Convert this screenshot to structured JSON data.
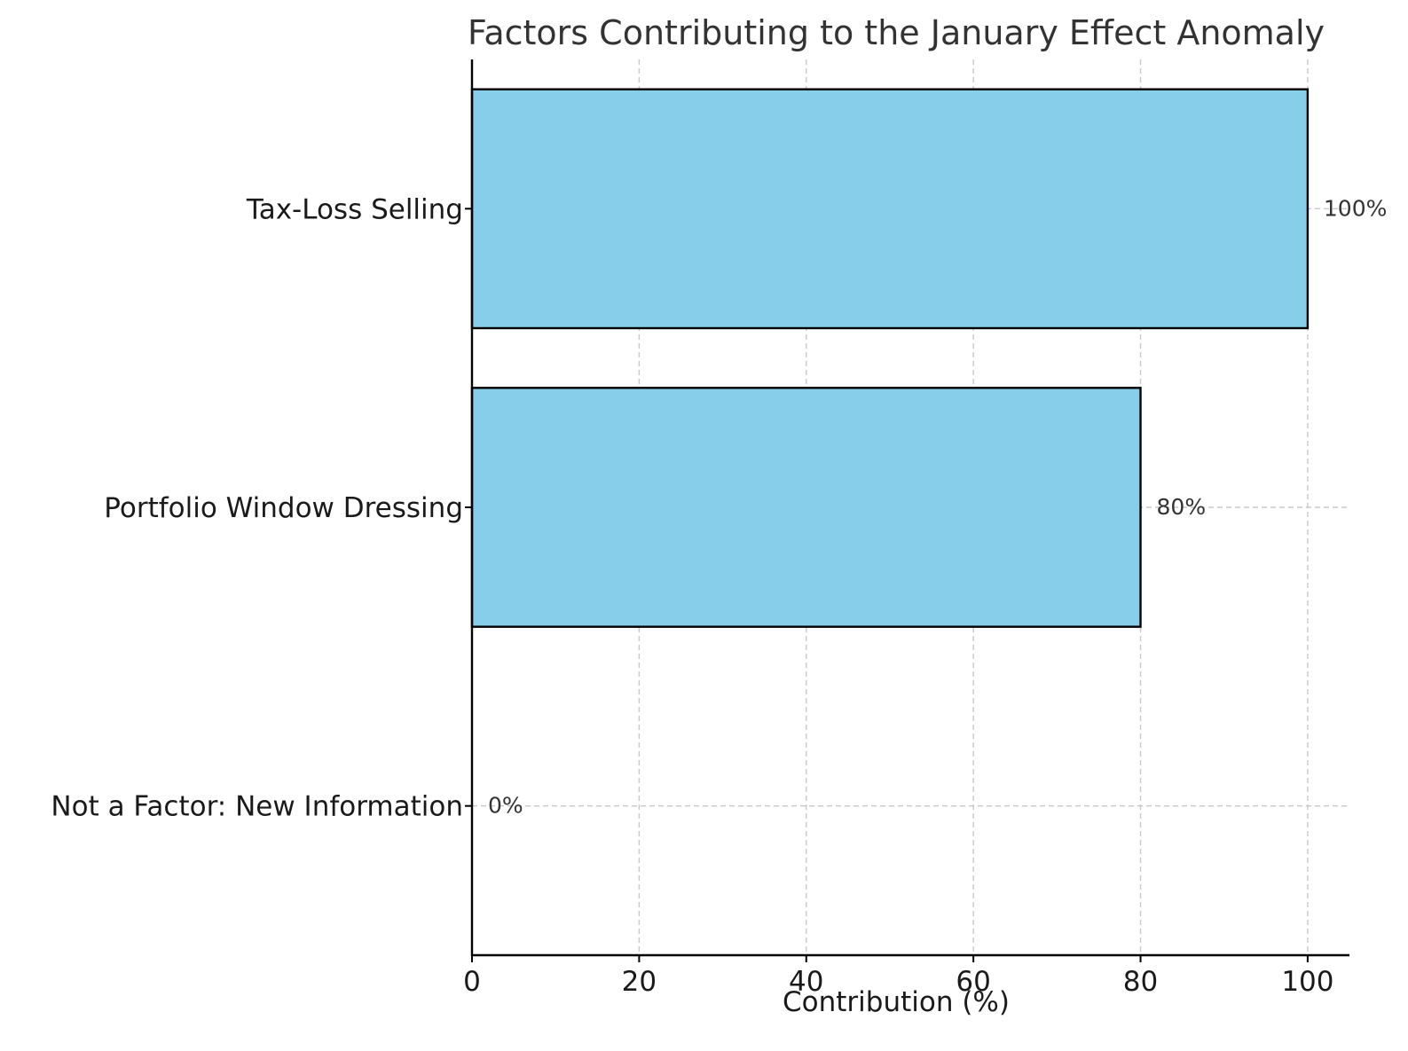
{
  "chart_data": {
    "type": "bar",
    "orientation": "horizontal",
    "title": "Factors Contributing to the January Effect Anomaly",
    "xlabel": "Contribution (%)",
    "ylabel": "",
    "categories": [
      "Tax-Loss Selling",
      "Portfolio Window Dressing",
      "Not a Factor: New Information"
    ],
    "values": [
      100,
      80,
      0
    ],
    "data_labels": [
      "100%",
      "80%",
      "0%"
    ],
    "xlim": [
      0,
      105
    ],
    "xticks": [
      0,
      20,
      40,
      60,
      80,
      100
    ],
    "xtick_labels": [
      "0",
      "20",
      "40",
      "60",
      "80",
      "100"
    ],
    "grid": true,
    "bar_color": "#87CEEB",
    "edge_color": "#000000"
  }
}
